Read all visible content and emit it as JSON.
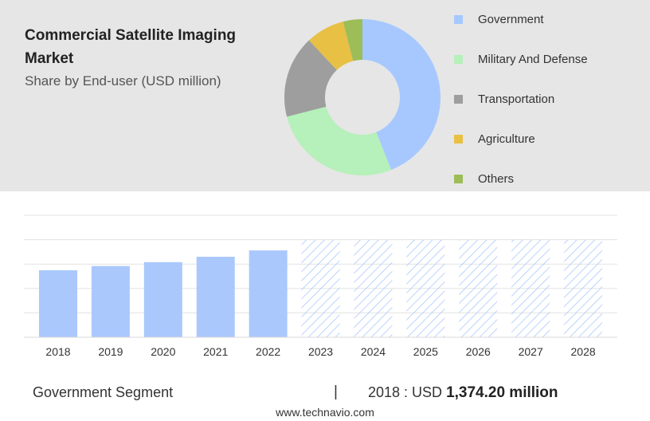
{
  "title": "Commercial Satellite Imaging Market",
  "subtitle": "Share by End-user (USD million)",
  "colors": {
    "top_panel_bg": "#e6e6e6",
    "bar_actual": "#aac8fc",
    "bar_forecast_hatch": "#aac8fc",
    "grid": "#e3e3e3"
  },
  "chart_data": [
    {
      "type": "pie",
      "variant": "donut",
      "legend_position": "right",
      "slices": [
        {
          "label": "Government",
          "value": 44,
          "color": "#a6c8ff"
        },
        {
          "label": "Military And Defense",
          "value": 27,
          "color": "#b6f0ba"
        },
        {
          "label": "Transportation",
          "value": 17,
          "color": "#9e9e9e"
        },
        {
          "label": "Agriculture",
          "value": 8,
          "color": "#e8c044"
        },
        {
          "label": "Others",
          "value": 4,
          "color": "#9cbd58"
        }
      ]
    },
    {
      "type": "bar",
      "categories": [
        "2018",
        "2019",
        "2020",
        "2021",
        "2022",
        "2023",
        "2024",
        "2025",
        "2026",
        "2027",
        "2028"
      ],
      "values": [
        1374.2,
        1460,
        1540,
        1650,
        1780,
        null,
        null,
        null,
        null,
        null,
        null
      ],
      "forecast_categories": [
        "2023",
        "2024",
        "2025",
        "2026",
        "2027",
        "2028"
      ],
      "ylim": [
        0,
        2500
      ],
      "grid": true,
      "y_tick_labels_shown": false
    }
  ],
  "footer": {
    "segment_label": "Government Segment",
    "separator": "|",
    "stat_prefix": "2018 : USD ",
    "stat_value": "1,374.20 million"
  },
  "source": "www.technavio.com"
}
